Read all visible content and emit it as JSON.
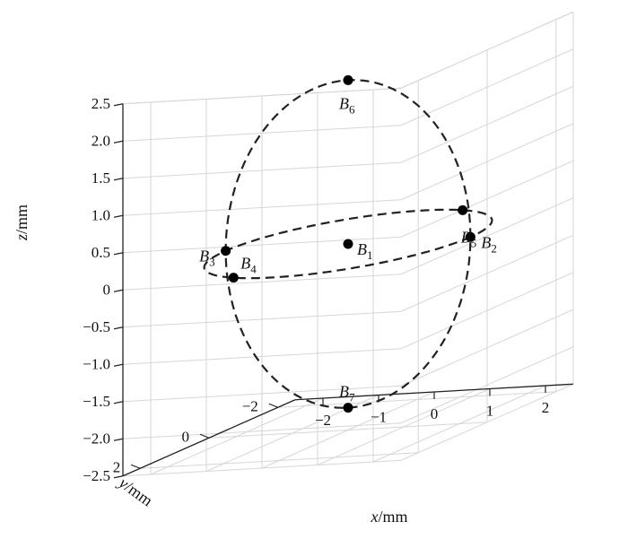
{
  "chart_data": {
    "type": "scatter",
    "projection": "3d",
    "colors": {
      "points": "#000000",
      "dashed_curves": "#222222",
      "grid": "#d6d6d6"
    },
    "axes": {
      "x": {
        "label_var": "x",
        "label_unit": "/mm",
        "ticks": [
          "−2",
          "−1",
          "0",
          "1",
          "2"
        ],
        "tick_values": [
          -2,
          -1,
          0,
          1,
          2
        ],
        "range": [
          -2.5,
          2.5
        ]
      },
      "y": {
        "label_var": "y",
        "label_unit": "/mm",
        "ticks": [
          "2",
          "0",
          "−2"
        ],
        "tick_values": [
          2,
          0,
          -2
        ],
        "range": [
          -2.5,
          2.5
        ]
      },
      "z": {
        "label_var": "z",
        "label_unit": "/mm",
        "ticks": [
          "2.5",
          "2.0",
          "1.5",
          "1.0",
          "0.5",
          "0",
          "−0.5",
          "−1.0",
          "−1.5",
          "−2.0",
          "−2.5"
        ],
        "tick_values": [
          2.5,
          2.0,
          1.5,
          1.0,
          0.5,
          0,
          -0.5,
          -1.0,
          -1.5,
          -2.0,
          -2.5
        ],
        "range": [
          -2.5,
          2.5
        ]
      }
    },
    "grid": true,
    "points": [
      {
        "name": "B",
        "sub": "1",
        "x": 0,
        "y": 0,
        "z": 0
      },
      {
        "name": "B",
        "sub": "2",
        "x": 2.2,
        "y": 0,
        "z": 0
      },
      {
        "name": "B",
        "sub": "3",
        "x": -2.2,
        "y": 0,
        "z": 0
      },
      {
        "name": "B",
        "sub": "4",
        "x": -0.79,
        "y": 2.05,
        "z": 0
      },
      {
        "name": "B",
        "sub": "5",
        "x": 0.79,
        "y": -2.05,
        "z": 0
      },
      {
        "name": "B",
        "sub": "6",
        "x": 0,
        "y": 0,
        "z": 2.2
      },
      {
        "name": "B",
        "sub": "7",
        "x": 0,
        "y": 0,
        "z": -2.2
      }
    ],
    "curves": [
      {
        "kind": "circle",
        "plane": "xy",
        "radius": 2.2,
        "style": "dashed"
      },
      {
        "kind": "circle",
        "plane": "xz",
        "radius": 2.2,
        "style": "dashed"
      }
    ]
  }
}
